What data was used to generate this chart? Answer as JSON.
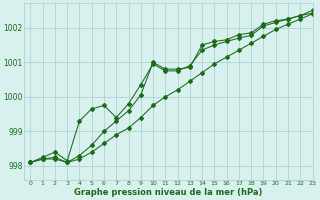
{
  "xlabel": "Graphe pression niveau de la mer (hPa)",
  "ylim": [
    997.6,
    1002.7
  ],
  "xlim": [
    -0.5,
    23
  ],
  "yticks": [
    998,
    999,
    1000,
    1001,
    1002
  ],
  "xticks": [
    0,
    1,
    2,
    3,
    4,
    5,
    6,
    7,
    8,
    9,
    10,
    11,
    12,
    13,
    14,
    15,
    16,
    17,
    18,
    19,
    20,
    21,
    22,
    23
  ],
  "bg_color": "#d8f0ee",
  "grid_color": "#a8cccc",
  "line_color": "#1a6b1a",
  "figsize": [
    3.2,
    2.0
  ],
  "dpi": 100,
  "series": [
    [
      998.1,
      998.2,
      998.25,
      998.1,
      998.3,
      998.6,
      999.0,
      999.3,
      999.6,
      1000.05,
      1001.0,
      1000.8,
      1000.8,
      1000.85,
      1001.5,
      1001.6,
      1001.65,
      1001.8,
      1001.85,
      1002.1,
      1002.2,
      1002.25,
      1002.35,
      1002.5
    ],
    [
      998.1,
      998.25,
      998.4,
      998.15,
      999.3,
      999.65,
      999.75,
      999.4,
      999.8,
      1000.35,
      1000.95,
      1000.75,
      1000.75,
      1000.9,
      1001.35,
      1001.5,
      1001.6,
      1001.7,
      1001.78,
      1002.05,
      1002.15,
      1002.25,
      1002.35,
      1002.42
    ],
    [
      998.1,
      998.2,
      998.2,
      998.1,
      998.2,
      998.4,
      998.65,
      998.9,
      999.1,
      999.4,
      999.75,
      1000.0,
      1000.2,
      1000.45,
      1000.7,
      1000.95,
      1001.15,
      1001.35,
      1001.55,
      1001.75,
      1001.95,
      1002.1,
      1002.25,
      1002.4
    ]
  ]
}
